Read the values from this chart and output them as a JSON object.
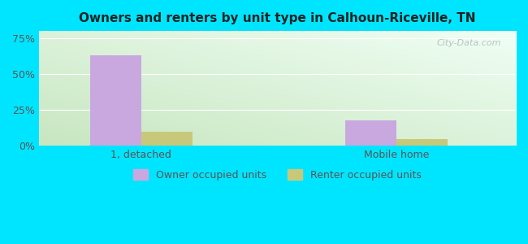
{
  "title": "Owners and renters by unit type in Calhoun-Riceville, TN",
  "categories": [
    "1, detached",
    "Mobile home"
  ],
  "owner_values": [
    63,
    18
  ],
  "renter_values": [
    10,
    5
  ],
  "owner_color": "#c9a8e0",
  "renter_color": "#c8c87a",
  "yticks": [
    0,
    25,
    50,
    75
  ],
  "ytick_labels": [
    "0%",
    "25%",
    "50%",
    "75%"
  ],
  "ylim": [
    0,
    80
  ],
  "bg_bottom_left": "#c8e6c0",
  "bg_top_right": "#f5fff8",
  "outer_bg": "#00e5ff",
  "watermark": "City-Data.com",
  "bar_width": 0.3,
  "x_positions": [
    0.6,
    2.1
  ],
  "xlim": [
    0.0,
    2.8
  ]
}
